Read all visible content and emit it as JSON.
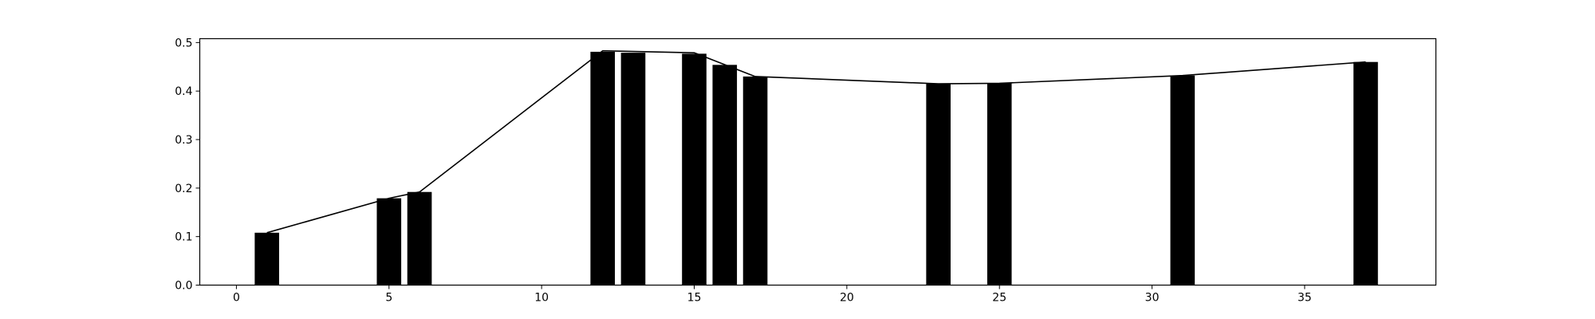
{
  "chart_data": {
    "type": "bar",
    "title": "",
    "xlabel": "",
    "ylabel": "",
    "xlim": [
      -1.2,
      39.3
    ],
    "ylim": [
      0.0,
      0.508
    ],
    "x_ticks": [
      0,
      5,
      10,
      15,
      20,
      25,
      30,
      35
    ],
    "x_tick_labels": [
      "0",
      "5",
      "10",
      "15",
      "20",
      "25",
      "30",
      "35"
    ],
    "y_ticks": [
      0.0,
      0.1,
      0.2,
      0.3,
      0.4,
      0.5
    ],
    "y_tick_labels": [
      "0.0",
      "0.1",
      "0.2",
      "0.3",
      "0.4",
      "0.5"
    ],
    "grid": false,
    "bar_width": 0.8,
    "colors": {
      "bar": "#000000",
      "line": "#000000",
      "axes": "#000000",
      "background": "#ffffff"
    },
    "series": [
      {
        "name": "bars",
        "type": "bar",
        "x": [
          1,
          5,
          6,
          12,
          13,
          15,
          16,
          17,
          23,
          25,
          31,
          37
        ],
        "values": [
          0.108,
          0.179,
          0.192,
          0.481,
          0.479,
          0.477,
          0.454,
          0.43,
          0.415,
          0.416,
          0.432,
          0.46
        ]
      },
      {
        "name": "line",
        "type": "line",
        "x": [
          1,
          5,
          6,
          12,
          15,
          17,
          23,
          25,
          31,
          37
        ],
        "values": [
          0.108,
          0.179,
          0.192,
          0.483,
          0.479,
          0.43,
          0.415,
          0.416,
          0.432,
          0.46
        ]
      }
    ]
  }
}
